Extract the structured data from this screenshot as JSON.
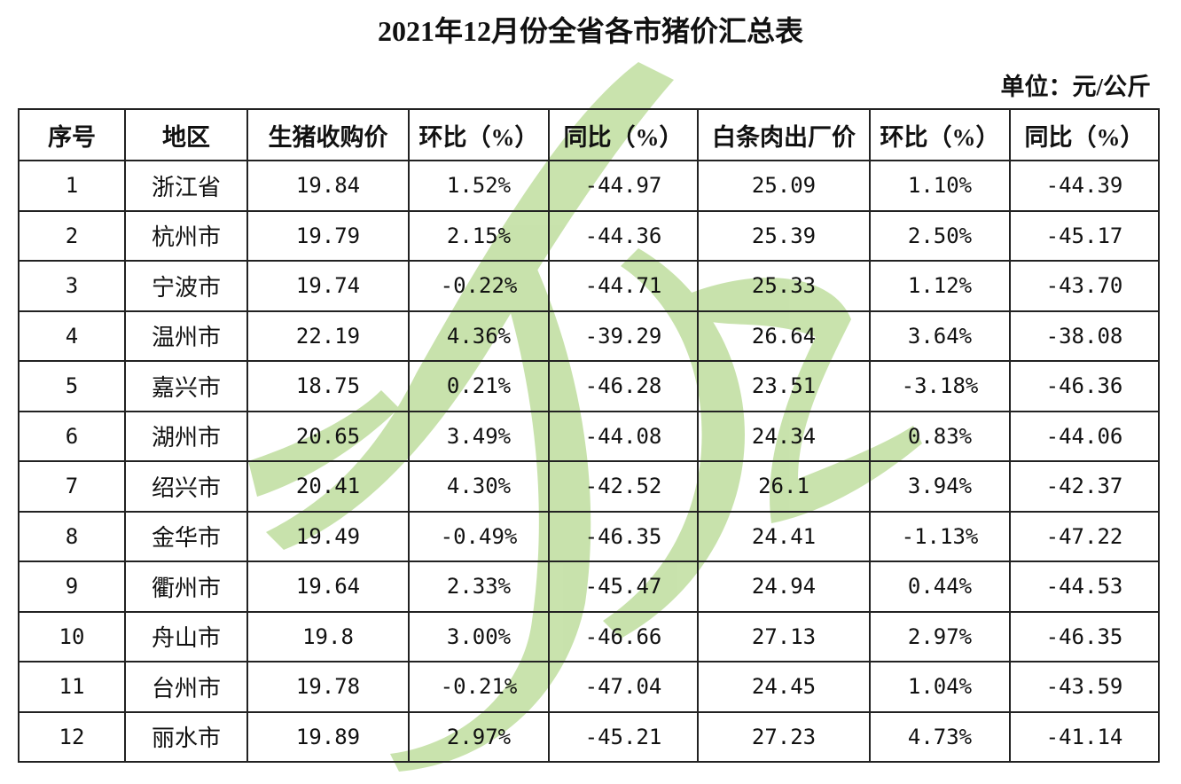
{
  "header": {
    "title": "2021年12月份全省各市猪价汇总表",
    "unit": "单位：元/公斤"
  },
  "table": {
    "columns": [
      "序号",
      "地区",
      "生猪收购价",
      "环比（%）",
      "同比（%）",
      "白条肉出厂价",
      "环比（%）",
      "同比（%）"
    ],
    "rows": [
      [
        "1",
        "浙江省",
        "19.84",
        "1.52%",
        "-44.97",
        "25.09",
        "1.10%",
        "-44.39"
      ],
      [
        "2",
        "杭州市",
        "19.79",
        "2.15%",
        "-44.36",
        "25.39",
        "2.50%",
        "-45.17"
      ],
      [
        "3",
        "宁波市",
        "19.74",
        "-0.22%",
        "-44.71",
        "25.33",
        "1.12%",
        "-43.70"
      ],
      [
        "4",
        "温州市",
        "22.19",
        "4.36%",
        "-39.29",
        "26.64",
        "3.64%",
        "-38.08"
      ],
      [
        "5",
        "嘉兴市",
        "18.75",
        "0.21%",
        "-46.28",
        "23.51",
        "-3.18%",
        "-46.36"
      ],
      [
        "6",
        "湖州市",
        "20.65",
        "3.49%",
        "-44.08",
        "24.34",
        "0.83%",
        "-44.06"
      ],
      [
        "7",
        "绍兴市",
        "20.41",
        "4.30%",
        "-42.52",
        "26.1",
        "3.94%",
        "-42.37"
      ],
      [
        "8",
        "金华市",
        "19.49",
        "-0.49%",
        "-46.35",
        "24.41",
        "-1.13%",
        "-47.22"
      ],
      [
        "9",
        "衢州市",
        "19.64",
        "2.33%",
        "-45.47",
        "24.94",
        "0.44%",
        "-44.53"
      ],
      [
        "10",
        "舟山市",
        "19.8",
        "3.00%",
        "-46.66",
        "27.13",
        "2.97%",
        "-46.35"
      ],
      [
        "11",
        "台州市",
        "19.78",
        "-0.21%",
        "-47.04",
        "24.45",
        "1.04%",
        "-43.59"
      ],
      [
        "12",
        "丽水市",
        "19.89",
        "2.97%",
        "-45.21",
        "27.23",
        "4.73%",
        "-41.14"
      ]
    ]
  }
}
